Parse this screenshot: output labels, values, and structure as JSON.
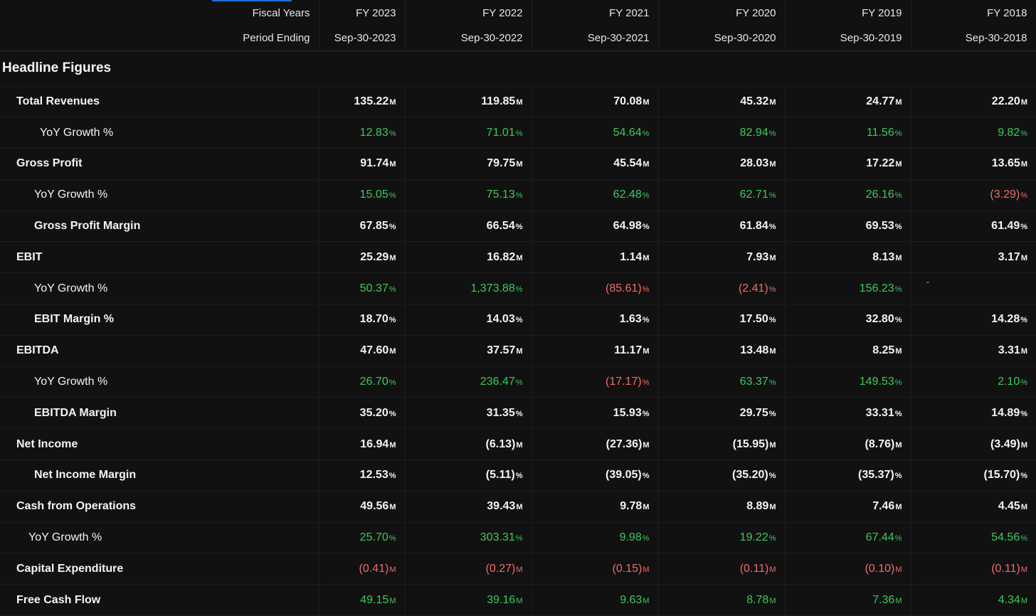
{
  "header": {
    "fiscal_years_label": "Fiscal Years",
    "period_ending_label": "Period Ending",
    "years": [
      "FY 2023",
      "FY 2022",
      "FY 2021",
      "FY 2020",
      "FY 2019",
      "FY 2018"
    ],
    "periods": [
      "Sep-30-2023",
      "Sep-30-2022",
      "Sep-30-2021",
      "Sep-30-2020",
      "Sep-30-2019",
      "Sep-30-2018"
    ]
  },
  "section_title": "Headline Figures",
  "rows": [
    {
      "label": "Total Revenues",
      "indent": "l1",
      "style": "main",
      "cells": [
        [
          "135.22",
          "M",
          "wht"
        ],
        [
          "119.85",
          "M",
          "wht"
        ],
        [
          "70.08",
          "M",
          "wht"
        ],
        [
          "45.32",
          "M",
          "wht"
        ],
        [
          "24.77",
          "M",
          "wht"
        ],
        [
          "22.20",
          "M",
          "wht"
        ]
      ]
    },
    {
      "label": "YoY Growth %",
      "indent": "l2b",
      "style": "sub",
      "cells": [
        [
          "12.83",
          "%",
          "pos"
        ],
        [
          "71.01",
          "%",
          "pos"
        ],
        [
          "54.64",
          "%",
          "pos"
        ],
        [
          "82.94",
          "%",
          "pos"
        ],
        [
          "11.56",
          "%",
          "pos"
        ],
        [
          "9.82",
          "%",
          "pos"
        ]
      ]
    },
    {
      "label": "Gross Profit",
      "indent": "l1",
      "style": "main",
      "cells": [
        [
          "91.74",
          "M",
          "wht"
        ],
        [
          "79.75",
          "M",
          "wht"
        ],
        [
          "45.54",
          "M",
          "wht"
        ],
        [
          "28.03",
          "M",
          "wht"
        ],
        [
          "17.22",
          "M",
          "wht"
        ],
        [
          "13.65",
          "M",
          "wht"
        ]
      ]
    },
    {
      "label": "YoY Growth %",
      "indent": "l2",
      "style": "sub",
      "cells": [
        [
          "15.05",
          "%",
          "pos"
        ],
        [
          "75.13",
          "%",
          "pos"
        ],
        [
          "62.48",
          "%",
          "pos"
        ],
        [
          "62.71",
          "%",
          "pos"
        ],
        [
          "26.16",
          "%",
          "pos"
        ],
        [
          "(3.29)",
          "%",
          "neg"
        ]
      ]
    },
    {
      "label": "Gross Profit Margin",
      "indent": "l2",
      "style": "main",
      "cells": [
        [
          "67.85",
          "%",
          "wht"
        ],
        [
          "66.54",
          "%",
          "wht"
        ],
        [
          "64.98",
          "%",
          "wht"
        ],
        [
          "61.84",
          "%",
          "wht"
        ],
        [
          "69.53",
          "%",
          "wht"
        ],
        [
          "61.49",
          "%",
          "wht"
        ]
      ]
    },
    {
      "label": "EBIT",
      "indent": "l1",
      "style": "main",
      "cells": [
        [
          "25.29",
          "M",
          "wht"
        ],
        [
          "16.82",
          "M",
          "wht"
        ],
        [
          "1.14",
          "M",
          "wht"
        ],
        [
          "7.93",
          "M",
          "wht"
        ],
        [
          "8.13",
          "M",
          "wht"
        ],
        [
          "3.17",
          "M",
          "wht"
        ]
      ]
    },
    {
      "label": "YoY Growth %",
      "indent": "l2",
      "style": "sub",
      "cells": [
        [
          "50.37",
          "%",
          "pos"
        ],
        [
          "1,373.88",
          "%",
          "pos"
        ],
        [
          "(85.61)",
          "%",
          "neg"
        ],
        [
          "(2.41)",
          "%",
          "neg"
        ],
        [
          "156.23",
          "%",
          "pos"
        ],
        [
          "-",
          "",
          "dash"
        ]
      ]
    },
    {
      "label": "EBIT Margin %",
      "indent": "l2",
      "style": "main",
      "cells": [
        [
          "18.70",
          "%",
          "wht"
        ],
        [
          "14.03",
          "%",
          "wht"
        ],
        [
          "1.63",
          "%",
          "wht"
        ],
        [
          "17.50",
          "%",
          "wht"
        ],
        [
          "32.80",
          "%",
          "wht"
        ],
        [
          "14.28",
          "%",
          "wht"
        ]
      ]
    },
    {
      "label": "EBITDA",
      "indent": "l1",
      "style": "main",
      "cells": [
        [
          "47.60",
          "M",
          "wht"
        ],
        [
          "37.57",
          "M",
          "wht"
        ],
        [
          "11.17",
          "M",
          "wht"
        ],
        [
          "13.48",
          "M",
          "wht"
        ],
        [
          "8.25",
          "M",
          "wht"
        ],
        [
          "3.31",
          "M",
          "wht"
        ]
      ]
    },
    {
      "label": "YoY Growth %",
      "indent": "l2",
      "style": "sub",
      "cells": [
        [
          "26.70",
          "%",
          "pos"
        ],
        [
          "236.47",
          "%",
          "pos"
        ],
        [
          "(17.17)",
          "%",
          "neg"
        ],
        [
          "63.37",
          "%",
          "pos"
        ],
        [
          "149.53",
          "%",
          "pos"
        ],
        [
          "2.10",
          "%",
          "pos"
        ]
      ]
    },
    {
      "label": "EBITDA Margin",
      "indent": "l2",
      "style": "main",
      "cells": [
        [
          "35.20",
          "%",
          "wht"
        ],
        [
          "31.35",
          "%",
          "wht"
        ],
        [
          "15.93",
          "%",
          "wht"
        ],
        [
          "29.75",
          "%",
          "wht"
        ],
        [
          "33.31",
          "%",
          "wht"
        ],
        [
          "14.89",
          "%",
          "wht"
        ]
      ]
    },
    {
      "label": "Net Income",
      "indent": "l1",
      "style": "main",
      "cells": [
        [
          "16.94",
          "M",
          "wht"
        ],
        [
          "(6.13)",
          "M",
          "wht"
        ],
        [
          "(27.36)",
          "M",
          "wht"
        ],
        [
          "(15.95)",
          "M",
          "wht"
        ],
        [
          "(8.76)",
          "M",
          "wht"
        ],
        [
          "(3.49)",
          "M",
          "wht"
        ]
      ]
    },
    {
      "label": "Net Income Margin",
      "indent": "l2",
      "style": "main",
      "cells": [
        [
          "12.53",
          "%",
          "wht"
        ],
        [
          "(5.11)",
          "%",
          "wht"
        ],
        [
          "(39.05)",
          "%",
          "wht"
        ],
        [
          "(35.20)",
          "%",
          "wht"
        ],
        [
          "(35.37)",
          "%",
          "wht"
        ],
        [
          "(15.70)",
          "%",
          "wht"
        ]
      ]
    },
    {
      "label": "Cash from Operations",
      "indent": "l1",
      "style": "main",
      "cells": [
        [
          "49.56",
          "M",
          "wht"
        ],
        [
          "39.43",
          "M",
          "wht"
        ],
        [
          "9.78",
          "M",
          "wht"
        ],
        [
          "8.89",
          "M",
          "wht"
        ],
        [
          "7.46",
          "M",
          "wht"
        ],
        [
          "4.45",
          "M",
          "wht"
        ]
      ]
    },
    {
      "label": "YoY Growth %",
      "indent": "l2c",
      "style": "sub",
      "cells": [
        [
          "25.70",
          "%",
          "pos"
        ],
        [
          "303.31",
          "%",
          "pos"
        ],
        [
          "9.98",
          "%",
          "pos"
        ],
        [
          "19.22",
          "%",
          "pos"
        ],
        [
          "67.44",
          "%",
          "pos"
        ],
        [
          "54.56",
          "%",
          "pos"
        ]
      ]
    },
    {
      "label": "Capital Expenditure",
      "indent": "l1",
      "style": "main",
      "cells": [
        [
          "(0.41)",
          "M",
          "neg"
        ],
        [
          "(0.27)",
          "M",
          "neg"
        ],
        [
          "(0.15)",
          "M",
          "neg"
        ],
        [
          "(0.11)",
          "M",
          "neg"
        ],
        [
          "(0.10)",
          "M",
          "neg"
        ],
        [
          "(0.11)",
          "M",
          "neg"
        ]
      ]
    },
    {
      "label": "Free Cash Flow",
      "indent": "l1",
      "style": "main",
      "cells": [
        [
          "49.15",
          "M",
          "pos"
        ],
        [
          "39.16",
          "M",
          "pos"
        ],
        [
          "9.63",
          "M",
          "pos"
        ],
        [
          "8.78",
          "M",
          "pos"
        ],
        [
          "7.36",
          "M",
          "pos"
        ],
        [
          "4.34",
          "M",
          "pos"
        ]
      ]
    }
  ]
}
